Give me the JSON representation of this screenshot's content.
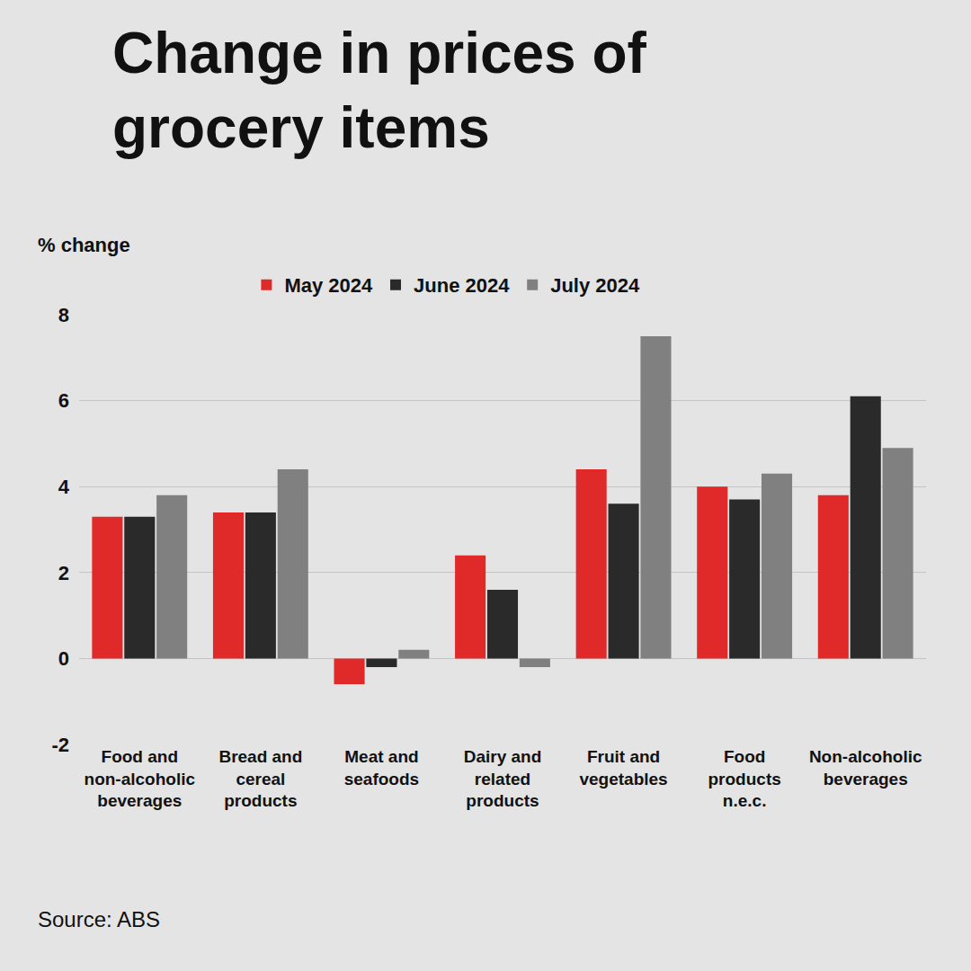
{
  "chart_data": {
    "type": "bar",
    "title": "Change in prices of grocery items",
    "y_label": "% change",
    "source": "Source: ABS",
    "categories": [
      "Food and non-alcoholic beverages",
      "Bread and cereal products",
      "Meat and seafoods",
      "Dairy and related products",
      "Fruit and vegetables",
      "Food products n.e.c.",
      "Non-alcoholic beverages"
    ],
    "series": [
      {
        "name": "May 2024",
        "color": "#e02a2a",
        "values": [
          3.3,
          3.4,
          -0.6,
          2.4,
          4.4,
          4.0,
          3.8
        ]
      },
      {
        "name": "June 2024",
        "color": "#2a2a2a",
        "values": [
          3.3,
          3.4,
          -0.2,
          1.6,
          3.6,
          3.7,
          6.1
        ]
      },
      {
        "name": "July 2024",
        "color": "#808080",
        "values": [
          3.8,
          4.4,
          0.2,
          -0.2,
          7.5,
          4.3,
          4.9
        ]
      }
    ],
    "ylim": [
      -2,
      8
    ],
    "yticks": [
      -2,
      0,
      2,
      4,
      6,
      8
    ],
    "grid": true,
    "legend": "top"
  }
}
